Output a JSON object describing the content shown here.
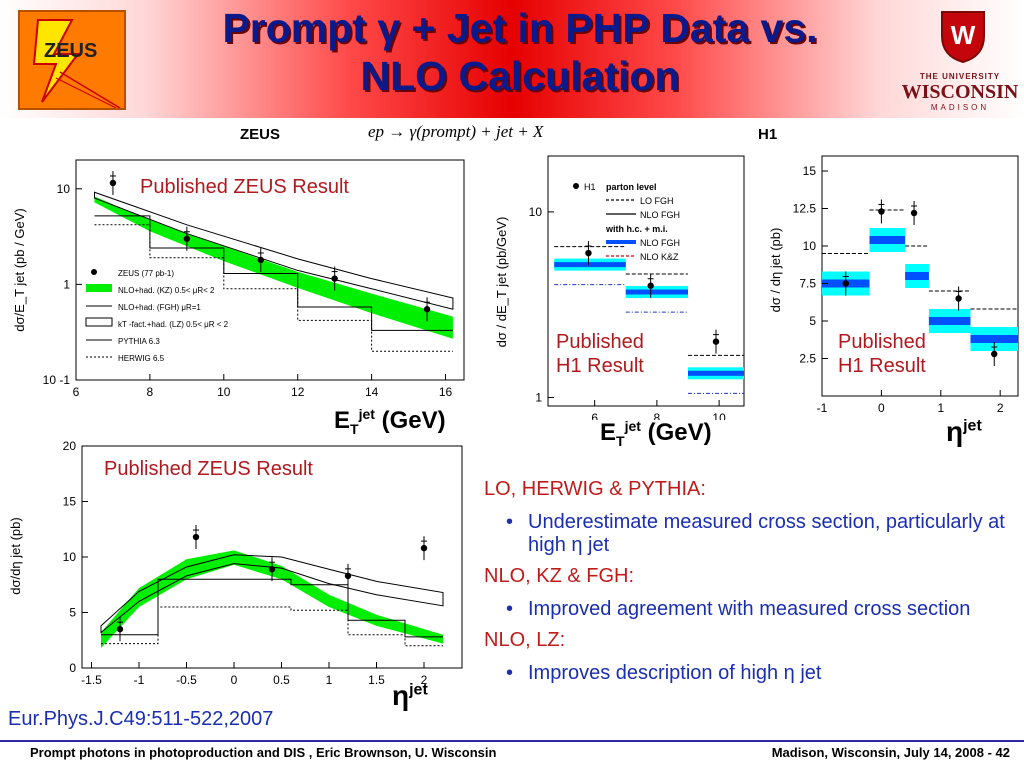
{
  "title": {
    "line1": "Prompt γ + Jet in PHP Data vs.",
    "line2": "NLO Calculation"
  },
  "logos": {
    "left": "ZEUS",
    "right_line1": "THE UNIVERSITY",
    "right_line2": "WISCONSIN",
    "right_line3": "MADISON"
  },
  "labels": {
    "zeus": "ZEUS",
    "h1": "H1",
    "formula": "ep → γ(prompt) + jet + X",
    "published_zeus_1": "Published ZEUS Result",
    "published_zeus_2": "Published ZEUS Result",
    "published_h1_a": "Published\nH1 Result",
    "published_h1_b": "Published\nH1 Result",
    "et_label_1": "ET jet (GeV)",
    "et_label_2": "ET jet (GeV)",
    "eta_label_1": "η jet",
    "eta_label_2": "η jet",
    "reference": "Eur.Phys.J.C49:511-522,2007"
  },
  "bullets": [
    {
      "head": "LO, HERWIG & PYTHIA:",
      "item": "Underestimate measured cross section, particularly at high η jet"
    },
    {
      "head": "NLO, KZ & FGH:",
      "item": "Improved agreement with measured cross section"
    },
    {
      "head": "NLO, LZ:",
      "item": "Improves description of high η jet"
    }
  ],
  "footer": {
    "left": "Prompt photons in photoproduction and DIS , Eric Brownson, U. Wisconsin",
    "right": "Madison, Wisconsin, July 14, 2008 - 42"
  },
  "colors": {
    "title": "#0a1a8a",
    "accent_red": "#b0191e",
    "bullet_blue": "#1a2fb0",
    "nlo_green": "#00ff00",
    "h1_blue": "#0050ff",
    "h1_cyan": "#00ffff"
  },
  "chart_data": [
    {
      "type": "line",
      "id": "zeus_et",
      "ylabel": "dσ/E_T jet (pb / GeV)",
      "xlim": [
        6,
        16.5
      ],
      "ylim_log": [
        0.1,
        20
      ],
      "log_y": true,
      "x_ticks": [
        6,
        8,
        10,
        12,
        14,
        16
      ],
      "y_ticks": [
        {
          "v": 10,
          "label": "10"
        },
        {
          "v": 1,
          "label": "1"
        },
        {
          "v": 0.1,
          "label": "10 -1"
        }
      ],
      "points": [
        {
          "x": 7,
          "y": 11.5
        },
        {
          "x": 9,
          "y": 3.0
        },
        {
          "x": 11,
          "y": 1.8
        },
        {
          "x": 13,
          "y": 1.15
        },
        {
          "x": 15.5,
          "y": 0.55
        }
      ],
      "legend": [
        "ZEUS (77 pb-1)",
        "NLO+had. (KZ) 0.5< μR< 2",
        "NLO+had. (FGH) μR=1",
        "kT -fact.+had. (LZ) 0.5< μR < 2",
        "PYTHIA 6.3",
        "HERWIG 6.5"
      ]
    },
    {
      "type": "line",
      "id": "h1_et",
      "ylabel": "dσ / dE_T jet (pb/GeV)",
      "xlim": [
        4.5,
        10.8
      ],
      "ylim_log": [
        0.9,
        20
      ],
      "log_y": true,
      "x_ticks": [
        6,
        8,
        10
      ],
      "y_ticks": [
        {
          "v": 10,
          "label": "10"
        },
        {
          "v": 1,
          "label": "1"
        }
      ],
      "bins": [
        5,
        7,
        9,
        11
      ],
      "points": [
        {
          "x": 5.8,
          "y": 6.0
        },
        {
          "x": 7.8,
          "y": 4.0
        },
        {
          "x": 9.9,
          "y": 2.0
        }
      ],
      "legend": [
        "H1",
        "parton level",
        "LO FGH",
        "NLO FGH",
        "with h.c. + m.i.",
        "NLO FGH",
        "NLO K&Z"
      ]
    },
    {
      "type": "line",
      "id": "h1_eta",
      "ylabel": "dσ / dη jet (pb)",
      "xlim": [
        -1,
        2.3
      ],
      "ylim": [
        0,
        16
      ],
      "x_ticks": [
        -1,
        0,
        1,
        2
      ],
      "y_ticks": [
        2.5,
        5,
        7.5,
        10,
        12.5,
        15
      ],
      "bins": [
        -1,
        -0.2,
        0.4,
        0.8,
        1.5,
        2.3
      ],
      "points": [
        {
          "x": -0.6,
          "y": 7.5
        },
        {
          "x": 0.0,
          "y": 12.3
        },
        {
          "x": 0.55,
          "y": 12.2
        },
        {
          "x": 1.3,
          "y": 6.5
        },
        {
          "x": 1.9,
          "y": 2.8
        }
      ]
    },
    {
      "type": "line",
      "id": "zeus_eta",
      "ylabel": "dσ/dη jet (pb)",
      "xlim": [
        -1.6,
        2.4
      ],
      "ylim": [
        0,
        20
      ],
      "x_ticks": [
        -1.5,
        -1,
        -0.5,
        0,
        0.5,
        1,
        1.5,
        2
      ],
      "y_ticks": [
        0,
        5,
        10,
        15,
        20
      ],
      "points": [
        {
          "x": -1.2,
          "y": 3.5
        },
        {
          "x": -0.4,
          "y": 11.8
        },
        {
          "x": 0.4,
          "y": 8.9
        },
        {
          "x": 1.2,
          "y": 8.3
        },
        {
          "x": 2.0,
          "y": 10.8
        }
      ]
    }
  ]
}
